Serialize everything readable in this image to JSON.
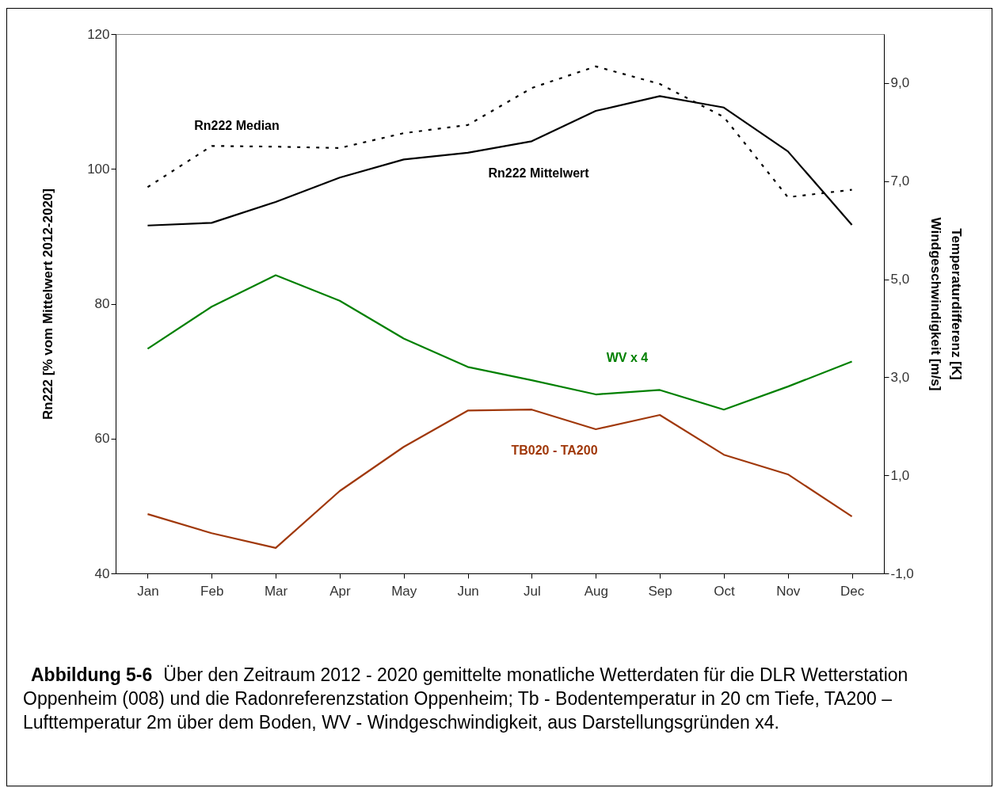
{
  "chart_data": {
    "type": "line",
    "categories": [
      "Jan",
      "Feb",
      "Mar",
      "Apr",
      "May",
      "Jun",
      "Jul",
      "Aug",
      "Sep",
      "Oct",
      "Nov",
      "Dec"
    ],
    "series": [
      {
        "name": "Rn222 Median",
        "color": "#000000",
        "line_style": "dotted",
        "values": [
          97.3,
          103.4,
          103.3,
          103.1,
          105.3,
          106.5,
          112.0,
          115.2,
          112.6,
          107.7,
          95.8,
          96.9
        ]
      },
      {
        "name": "Rn222 Mittelwert",
        "color": "#000000",
        "line_style": "solid",
        "values": [
          91.6,
          92.0,
          95.1,
          98.7,
          101.4,
          102.4,
          104.1,
          108.6,
          110.8,
          109.1,
          102.6,
          91.7
        ]
      },
      {
        "name": "WV x 4",
        "color": "#008000",
        "line_style": "solid",
        "axis": "y2",
        "values": [
          3.58,
          4.44,
          5.08,
          4.56,
          3.79,
          3.21,
          2.94,
          2.65,
          2.74,
          2.34,
          2.81,
          3.32
        ]
      },
      {
        "name": "TB020 - TA200",
        "color": "#a0380a",
        "line_style": "solid",
        "axis": "y2",
        "values": [
          0.21,
          -0.18,
          -0.48,
          0.68,
          1.58,
          2.32,
          2.34,
          1.94,
          2.23,
          1.42,
          1.02,
          0.16
        ]
      }
    ],
    "ylabel": "Rn222 [% vom Mittelwert 2012-2020]",
    "y2label": "Temperaturdifferenz [K]\nWindgeschwindigkeit [m/s]",
    "ylim": [
      40,
      120
    ],
    "yticks": [
      40,
      60,
      80,
      100,
      120
    ],
    "y2lim": [
      -1,
      10
    ],
    "y2ticks": [
      {
        "value": -1,
        "label": "-1,0"
      },
      {
        "value": 1,
        "label": "1,0"
      },
      {
        "value": 3,
        "label": "3,0"
      },
      {
        "value": 5,
        "label": "5,0"
      },
      {
        "value": 7,
        "label": "7,0"
      },
      {
        "value": 9,
        "label": "9,0"
      }
    ],
    "annotations": [
      "Abbildung 5-6",
      "Über den Zeitraum 2012 - 2020 gemittelte monatliche Wetterdaten für die DLR Wetterstation Oppenheim (008) und die Radonreferenzstation Oppenheim; Tb - Bodentemperatur in 20 cm Tiefe, TA200 – Lufttemperatur 2m über dem Boden, WV - Windgeschwindigkeit, aus Darstellungsgründen x4."
    ],
    "grid": false,
    "legend": false,
    "marker": "none"
  }
}
